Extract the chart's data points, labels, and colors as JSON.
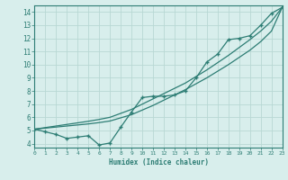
{
  "xlabel": "Humidex (Indice chaleur)",
  "x_data": [
    0,
    1,
    2,
    3,
    4,
    5,
    6,
    7,
    8,
    9,
    10,
    11,
    12,
    13,
    14,
    15,
    16,
    17,
    18,
    19,
    20,
    21,
    22,
    23
  ],
  "y_curve": [
    5.1,
    4.9,
    4.7,
    4.4,
    4.5,
    4.6,
    3.9,
    4.05,
    5.25,
    6.4,
    7.5,
    7.6,
    7.6,
    7.7,
    8.0,
    9.0,
    10.2,
    10.8,
    11.9,
    12.0,
    12.2,
    13.0,
    13.9,
    14.35
  ],
  "y_linear1": [
    5.1,
    5.18,
    5.26,
    5.34,
    5.42,
    5.5,
    5.6,
    5.72,
    5.96,
    6.2,
    6.55,
    6.9,
    7.3,
    7.7,
    8.1,
    8.55,
    9.0,
    9.5,
    10.0,
    10.55,
    11.1,
    11.75,
    12.55,
    14.35
  ],
  "y_linear2": [
    5.1,
    5.22,
    5.34,
    5.46,
    5.58,
    5.7,
    5.84,
    6.0,
    6.3,
    6.6,
    7.0,
    7.4,
    7.8,
    8.2,
    8.6,
    9.1,
    9.6,
    10.15,
    10.7,
    11.3,
    11.9,
    12.55,
    13.3,
    14.35
  ],
  "line_color": "#2d7d74",
  "bg_color": "#d8eeec",
  "grid_color": "#b8d8d4",
  "ylim": [
    3.7,
    14.5
  ],
  "xlim": [
    0,
    23
  ],
  "yticks": [
    4,
    5,
    6,
    7,
    8,
    9,
    10,
    11,
    12,
    13,
    14
  ],
  "xticks": [
    0,
    1,
    2,
    3,
    4,
    5,
    6,
    7,
    8,
    9,
    10,
    11,
    12,
    13,
    14,
    15,
    16,
    17,
    18,
    19,
    20,
    21,
    22,
    23
  ]
}
